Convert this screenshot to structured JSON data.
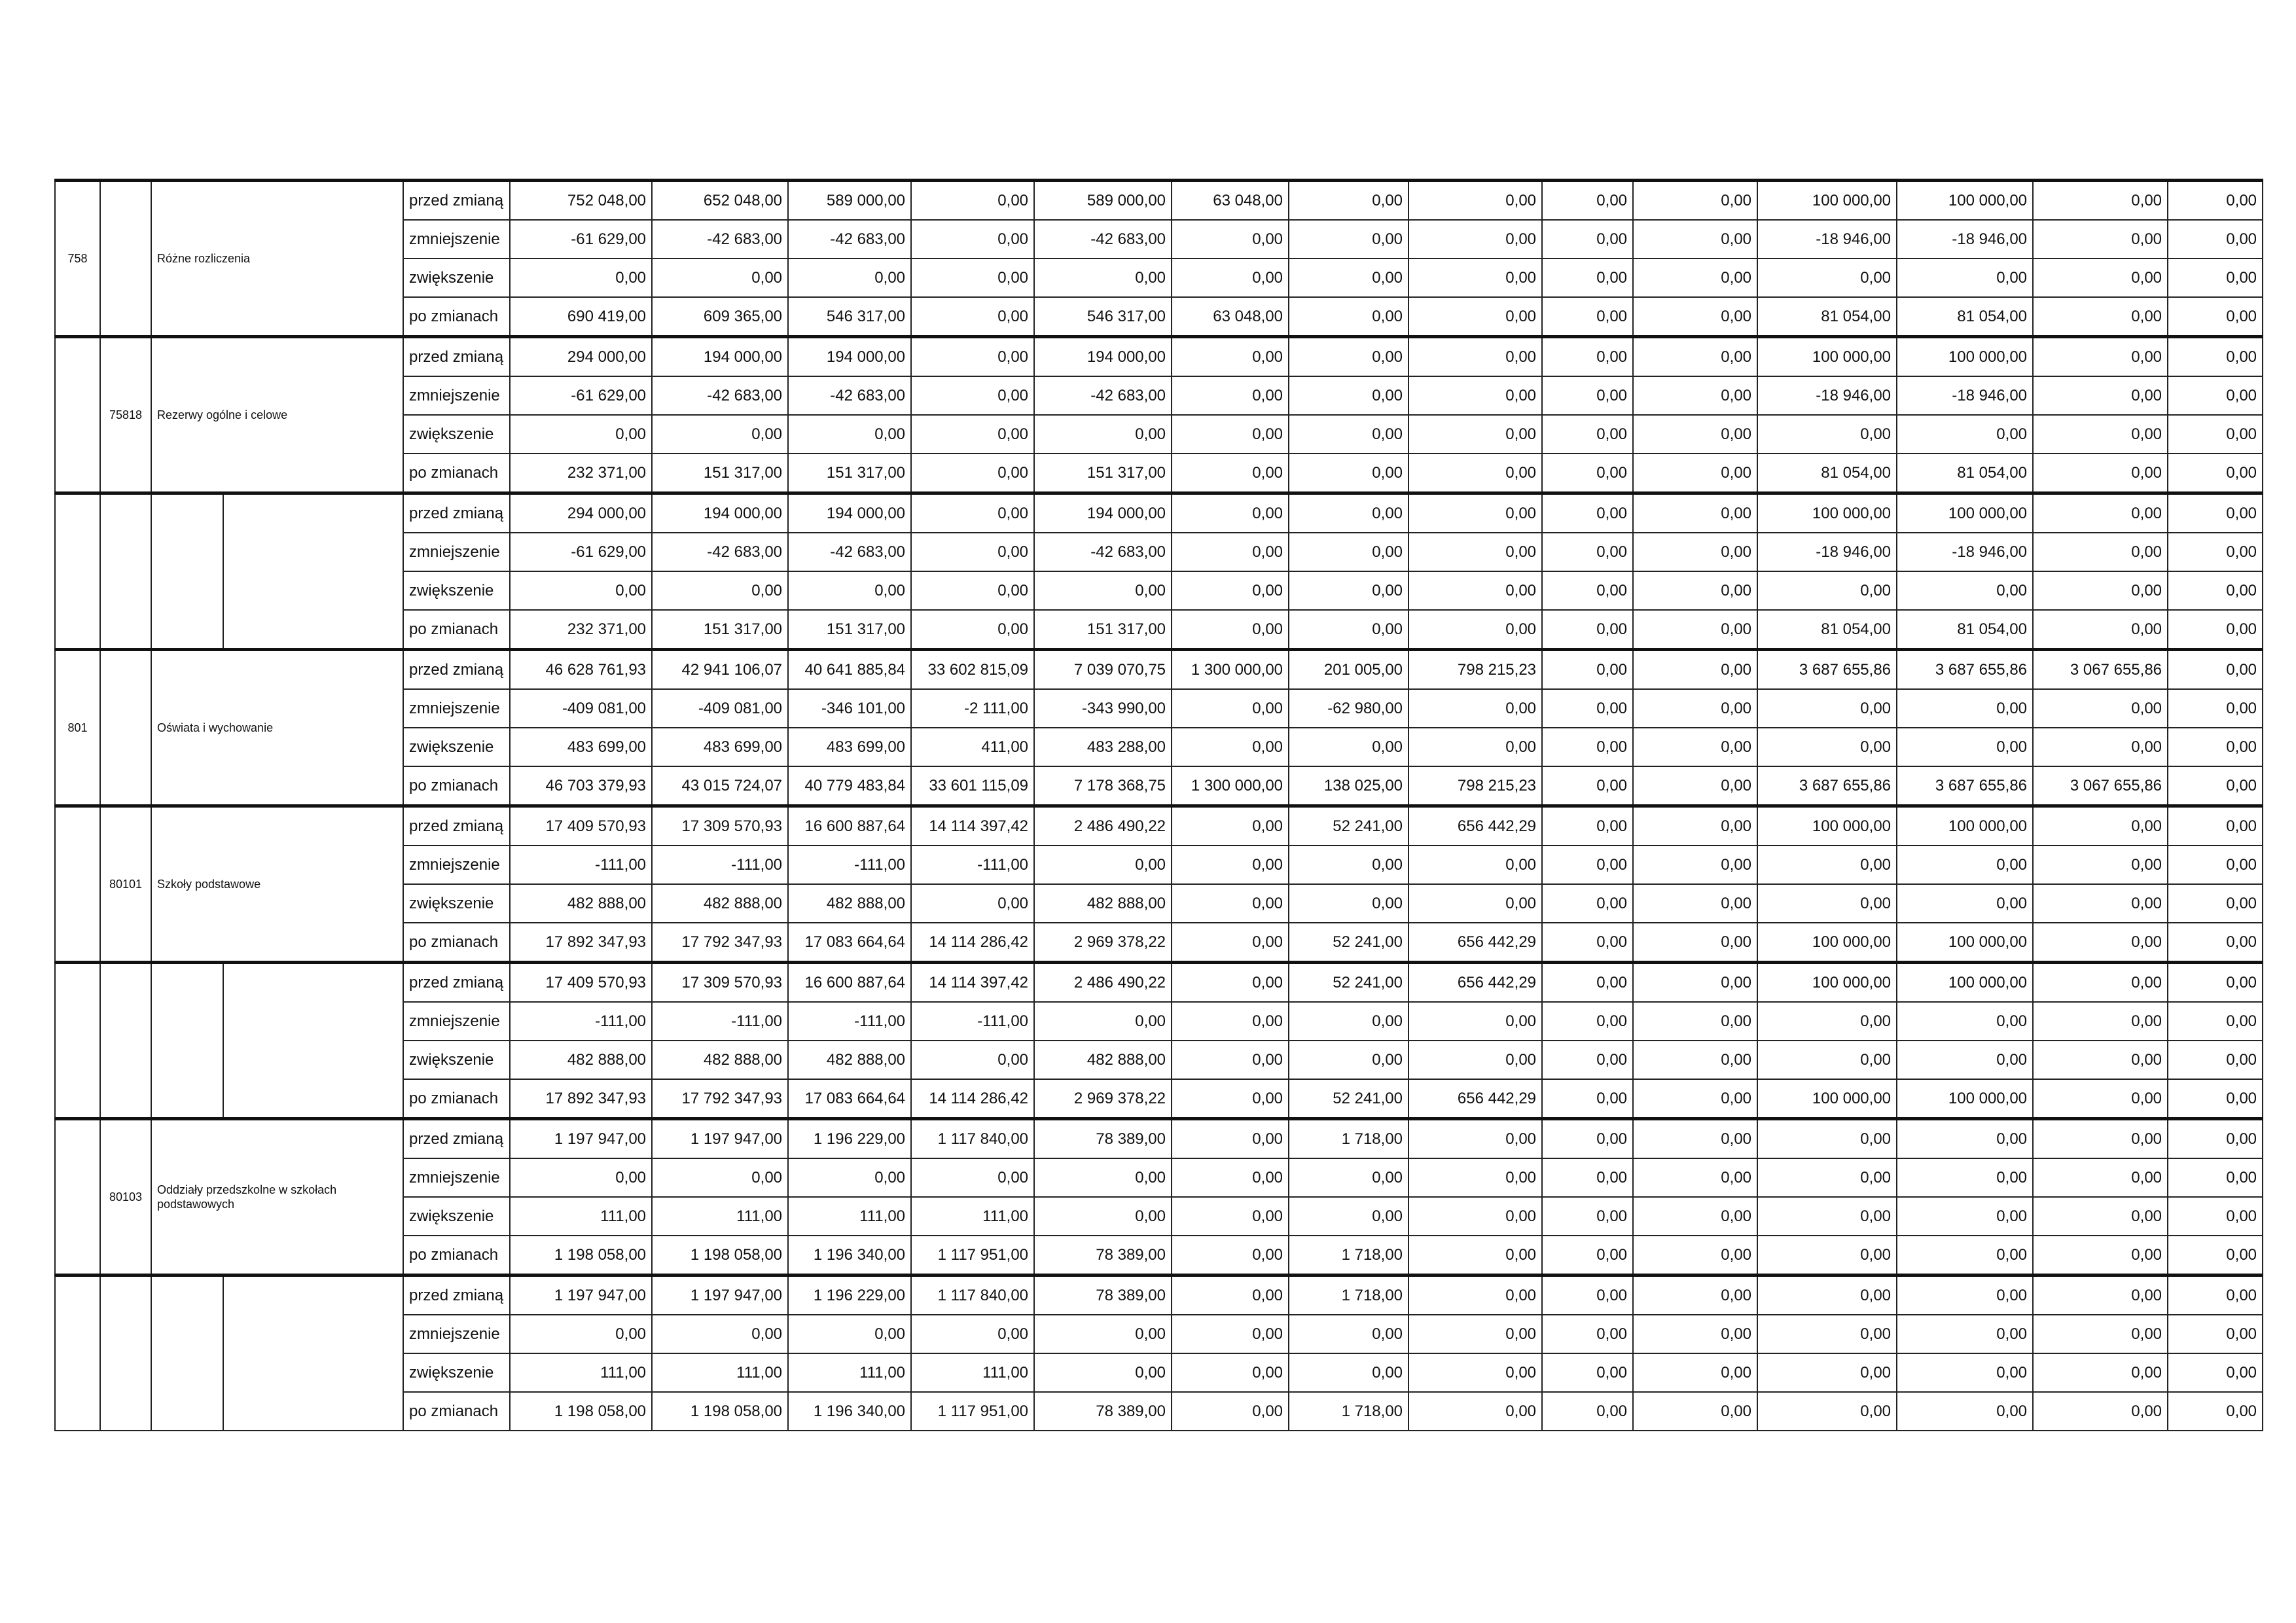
{
  "groups": [
    {
      "dzial": "758",
      "name": "Różne rozliczenia",
      "rows": [
        {
          "label": "przed zmianą",
          "values": [
            "752 048,00",
            "652 048,00",
            "589 000,00",
            "0,00",
            "589 000,00",
            "63 048,00",
            "0,00",
            "0,00",
            "0,00",
            "0,00",
            "100 000,00",
            "100 000,00",
            "0,00",
            "0,00"
          ]
        },
        {
          "label": "zmniejszenie",
          "values": [
            "-61 629,00",
            "-42 683,00",
            "-42 683,00",
            "0,00",
            "-42 683,00",
            "0,00",
            "0,00",
            "0,00",
            "0,00",
            "0,00",
            "-18 946,00",
            "-18 946,00",
            "0,00",
            "0,00"
          ]
        },
        {
          "label": "zwiększenie",
          "values": [
            "0,00",
            "0,00",
            "0,00",
            "0,00",
            "0,00",
            "0,00",
            "0,00",
            "0,00",
            "0,00",
            "0,00",
            "0,00",
            "0,00",
            "0,00",
            "0,00"
          ]
        },
        {
          "label": "po zmianach",
          "values": [
            "690 419,00",
            "609 365,00",
            "546 317,00",
            "0,00",
            "546 317,00",
            "63 048,00",
            "0,00",
            "0,00",
            "0,00",
            "0,00",
            "81 054,00",
            "81 054,00",
            "0,00",
            "0,00"
          ]
        }
      ]
    },
    {
      "rozdzial": "75818",
      "name": "Rezerwy ogólne i celowe",
      "rows": [
        {
          "label": "przed zmianą",
          "values": [
            "294 000,00",
            "194 000,00",
            "194 000,00",
            "0,00",
            "194 000,00",
            "0,00",
            "0,00",
            "0,00",
            "0,00",
            "0,00",
            "100 000,00",
            "100 000,00",
            "0,00",
            "0,00"
          ]
        },
        {
          "label": "zmniejszenie",
          "values": [
            "-61 629,00",
            "-42 683,00",
            "-42 683,00",
            "0,00",
            "-42 683,00",
            "0,00",
            "0,00",
            "0,00",
            "0,00",
            "0,00",
            "-18 946,00",
            "-18 946,00",
            "0,00",
            "0,00"
          ]
        },
        {
          "label": "zwiększenie",
          "values": [
            "0,00",
            "0,00",
            "0,00",
            "0,00",
            "0,00",
            "0,00",
            "0,00",
            "0,00",
            "0,00",
            "0,00",
            "0,00",
            "0,00",
            "0,00",
            "0,00"
          ]
        },
        {
          "label": "po zmianach",
          "values": [
            "232 371,00",
            "151 317,00",
            "151 317,00",
            "0,00",
            "151 317,00",
            "0,00",
            "0,00",
            "0,00",
            "0,00",
            "0,00",
            "81 054,00",
            "81 054,00",
            "0,00",
            "0,00"
          ]
        }
      ]
    },
    {
      "rows": [
        {
          "label": "przed zmianą",
          "values": [
            "294 000,00",
            "194 000,00",
            "194 000,00",
            "0,00",
            "194 000,00",
            "0,00",
            "0,00",
            "0,00",
            "0,00",
            "0,00",
            "100 000,00",
            "100 000,00",
            "0,00",
            "0,00"
          ]
        },
        {
          "label": "zmniejszenie",
          "values": [
            "-61 629,00",
            "-42 683,00",
            "-42 683,00",
            "0,00",
            "-42 683,00",
            "0,00",
            "0,00",
            "0,00",
            "0,00",
            "0,00",
            "-18 946,00",
            "-18 946,00",
            "0,00",
            "0,00"
          ]
        },
        {
          "label": "zwiększenie",
          "values": [
            "0,00",
            "0,00",
            "0,00",
            "0,00",
            "0,00",
            "0,00",
            "0,00",
            "0,00",
            "0,00",
            "0,00",
            "0,00",
            "0,00",
            "0,00",
            "0,00"
          ]
        },
        {
          "label": "po zmianach",
          "values": [
            "232 371,00",
            "151 317,00",
            "151 317,00",
            "0,00",
            "151 317,00",
            "0,00",
            "0,00",
            "0,00",
            "0,00",
            "0,00",
            "81 054,00",
            "81 054,00",
            "0,00",
            "0,00"
          ]
        }
      ]
    },
    {
      "dzial": "801",
      "name": "Oświata i wychowanie",
      "rows": [
        {
          "label": "przed zmianą",
          "values": [
            "46 628 761,93",
            "42 941 106,07",
            "40 641 885,84",
            "33 602 815,09",
            "7 039 070,75",
            "1 300 000,00",
            "201 005,00",
            "798 215,23",
            "0,00",
            "0,00",
            "3 687 655,86",
            "3 687 655,86",
            "3 067 655,86",
            "0,00"
          ]
        },
        {
          "label": "zmniejszenie",
          "values": [
            "-409 081,00",
            "-409 081,00",
            "-346 101,00",
            "-2 111,00",
            "-343 990,00",
            "0,00",
            "-62 980,00",
            "0,00",
            "0,00",
            "0,00",
            "0,00",
            "0,00",
            "0,00",
            "0,00"
          ]
        },
        {
          "label": "zwiększenie",
          "values": [
            "483 699,00",
            "483 699,00",
            "483 699,00",
            "411,00",
            "483 288,00",
            "0,00",
            "0,00",
            "0,00",
            "0,00",
            "0,00",
            "0,00",
            "0,00",
            "0,00",
            "0,00"
          ]
        },
        {
          "label": "po zmianach",
          "values": [
            "46 703 379,93",
            "43 015 724,07",
            "40 779 483,84",
            "33 601 115,09",
            "7 178 368,75",
            "1 300 000,00",
            "138 025,00",
            "798 215,23",
            "0,00",
            "0,00",
            "3 687 655,86",
            "3 687 655,86",
            "3 067 655,86",
            "0,00"
          ]
        }
      ]
    },
    {
      "rozdzial": "80101",
      "name": "Szkoły podstawowe",
      "rows": [
        {
          "label": "przed zmianą",
          "values": [
            "17 409 570,93",
            "17 309 570,93",
            "16 600 887,64",
            "14 114 397,42",
            "2 486 490,22",
            "0,00",
            "52 241,00",
            "656 442,29",
            "0,00",
            "0,00",
            "100 000,00",
            "100 000,00",
            "0,00",
            "0,00"
          ]
        },
        {
          "label": "zmniejszenie",
          "values": [
            "-111,00",
            "-111,00",
            "-111,00",
            "-111,00",
            "0,00",
            "0,00",
            "0,00",
            "0,00",
            "0,00",
            "0,00",
            "0,00",
            "0,00",
            "0,00",
            "0,00"
          ]
        },
        {
          "label": "zwiększenie",
          "values": [
            "482 888,00",
            "482 888,00",
            "482 888,00",
            "0,00",
            "482 888,00",
            "0,00",
            "0,00",
            "0,00",
            "0,00",
            "0,00",
            "0,00",
            "0,00",
            "0,00",
            "0,00"
          ]
        },
        {
          "label": "po zmianach",
          "values": [
            "17 892 347,93",
            "17 792 347,93",
            "17 083 664,64",
            "14 114 286,42",
            "2 969 378,22",
            "0,00",
            "52 241,00",
            "656 442,29",
            "0,00",
            "0,00",
            "100 000,00",
            "100 000,00",
            "0,00",
            "0,00"
          ]
        }
      ]
    },
    {
      "rows": [
        {
          "label": "przed zmianą",
          "values": [
            "17 409 570,93",
            "17 309 570,93",
            "16 600 887,64",
            "14 114 397,42",
            "2 486 490,22",
            "0,00",
            "52 241,00",
            "656 442,29",
            "0,00",
            "0,00",
            "100 000,00",
            "100 000,00",
            "0,00",
            "0,00"
          ]
        },
        {
          "label": "zmniejszenie",
          "values": [
            "-111,00",
            "-111,00",
            "-111,00",
            "-111,00",
            "0,00",
            "0,00",
            "0,00",
            "0,00",
            "0,00",
            "0,00",
            "0,00",
            "0,00",
            "0,00",
            "0,00"
          ]
        },
        {
          "label": "zwiększenie",
          "values": [
            "482 888,00",
            "482 888,00",
            "482 888,00",
            "0,00",
            "482 888,00",
            "0,00",
            "0,00",
            "0,00",
            "0,00",
            "0,00",
            "0,00",
            "0,00",
            "0,00",
            "0,00"
          ]
        },
        {
          "label": "po zmianach",
          "values": [
            "17 892 347,93",
            "17 792 347,93",
            "17 083 664,64",
            "14 114 286,42",
            "2 969 378,22",
            "0,00",
            "52 241,00",
            "656 442,29",
            "0,00",
            "0,00",
            "100 000,00",
            "100 000,00",
            "0,00",
            "0,00"
          ]
        }
      ]
    },
    {
      "rozdzial": "80103",
      "name": "Oddziały przedszkolne w szkołach podstawowych",
      "rows": [
        {
          "label": "przed zmianą",
          "values": [
            "1 197 947,00",
            "1 197 947,00",
            "1 196 229,00",
            "1 117 840,00",
            "78 389,00",
            "0,00",
            "1 718,00",
            "0,00",
            "0,00",
            "0,00",
            "0,00",
            "0,00",
            "0,00",
            "0,00"
          ]
        },
        {
          "label": "zmniejszenie",
          "values": [
            "0,00",
            "0,00",
            "0,00",
            "0,00",
            "0,00",
            "0,00",
            "0,00",
            "0,00",
            "0,00",
            "0,00",
            "0,00",
            "0,00",
            "0,00",
            "0,00"
          ]
        },
        {
          "label": "zwiększenie",
          "values": [
            "111,00",
            "111,00",
            "111,00",
            "111,00",
            "0,00",
            "0,00",
            "0,00",
            "0,00",
            "0,00",
            "0,00",
            "0,00",
            "0,00",
            "0,00",
            "0,00"
          ]
        },
        {
          "label": "po zmianach",
          "values": [
            "1 198 058,00",
            "1 198 058,00",
            "1 196 340,00",
            "1 117 951,00",
            "78 389,00",
            "0,00",
            "1 718,00",
            "0,00",
            "0,00",
            "0,00",
            "0,00",
            "0,00",
            "0,00",
            "0,00"
          ]
        }
      ]
    },
    {
      "rows": [
        {
          "label": "przed zmianą",
          "values": [
            "1 197 947,00",
            "1 197 947,00",
            "1 196 229,00",
            "1 117 840,00",
            "78 389,00",
            "0,00",
            "1 718,00",
            "0,00",
            "0,00",
            "0,00",
            "0,00",
            "0,00",
            "0,00",
            "0,00"
          ]
        },
        {
          "label": "zmniejszenie",
          "values": [
            "0,00",
            "0,00",
            "0,00",
            "0,00",
            "0,00",
            "0,00",
            "0,00",
            "0,00",
            "0,00",
            "0,00",
            "0,00",
            "0,00",
            "0,00",
            "0,00"
          ]
        },
        {
          "label": "zwiększenie",
          "values": [
            "111,00",
            "111,00",
            "111,00",
            "111,00",
            "0,00",
            "0,00",
            "0,00",
            "0,00",
            "0,00",
            "0,00",
            "0,00",
            "0,00",
            "0,00",
            "0,00"
          ]
        },
        {
          "label": "po zmianach",
          "values": [
            "1 198 058,00",
            "1 198 058,00",
            "1 196 340,00",
            "1 117 951,00",
            "78 389,00",
            "0,00",
            "1 718,00",
            "0,00",
            "0,00",
            "0,00",
            "0,00",
            "0,00",
            "0,00",
            "0,00"
          ]
        }
      ]
    }
  ]
}
